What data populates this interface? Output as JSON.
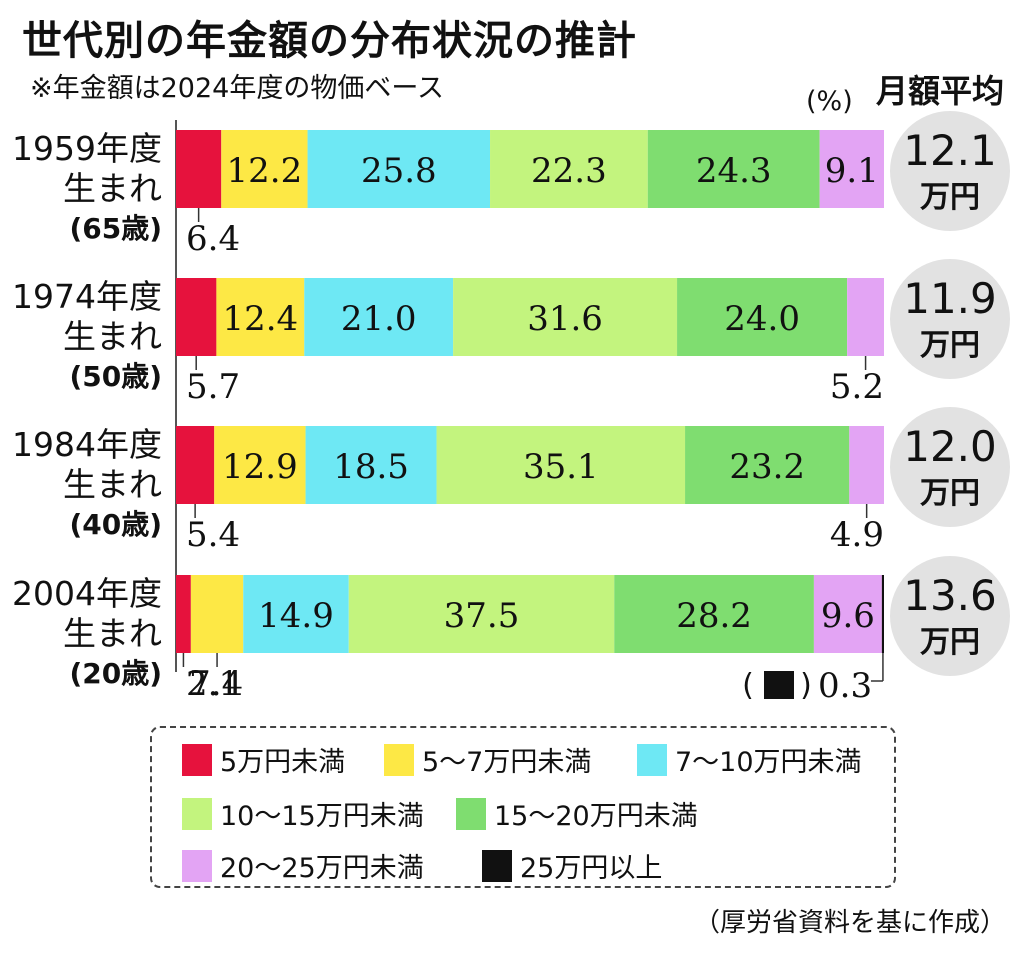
{
  "title": "世代別の年金額の分布状況の推計",
  "subtitle": "※年金額は2024年度の物価ベース",
  "avg_header": "月額平均",
  "unit_label": "(%)",
  "source": "（厚労省資料を基に作成）",
  "small_segment_note": {
    "open": "(",
    "close": ")",
    "swatch_color": "#111111"
  },
  "chart_data": {
    "type": "bar",
    "orientation": "horizontal",
    "stacked": true,
    "percent": true,
    "categories": [
      {
        "year": "1959年度",
        "born": "生まれ",
        "age": "(65歳)",
        "average_value": "12.1",
        "average_unit": "万円"
      },
      {
        "year": "1974年度",
        "born": "生まれ",
        "age": "(50歳)",
        "average_value": "11.9",
        "average_unit": "万円"
      },
      {
        "year": "1984年度",
        "born": "生まれ",
        "age": "(40歳)",
        "average_value": "12.0",
        "average_unit": "万円"
      },
      {
        "year": "2004年度",
        "born": "生まれ",
        "age": "(20歳)",
        "average_value": "13.6",
        "average_unit": "万円"
      }
    ],
    "series": [
      {
        "name": "5万円未満",
        "color": "#e6123d",
        "values": [
          6.4,
          5.7,
          5.4,
          2.1
        ],
        "labels": [
          "6.4",
          "5.7",
          "5.4",
          "2.1"
        ]
      },
      {
        "name": "5〜7万円未満",
        "color": "#fde845",
        "values": [
          12.2,
          12.4,
          12.9,
          7.4
        ],
        "labels": [
          "12.2",
          "12.4",
          "12.9",
          "7.4"
        ]
      },
      {
        "name": "7〜10万円未満",
        "color": "#6ee8f4",
        "values": [
          25.8,
          21.0,
          18.5,
          14.9
        ],
        "labels": [
          "25.8",
          "21.0",
          "18.5",
          "14.9"
        ]
      },
      {
        "name": "10〜15万円未満",
        "color": "#c3f47e",
        "values": [
          22.3,
          31.6,
          35.1,
          37.5
        ],
        "labels": [
          "22.3",
          "31.6",
          "35.1",
          "37.5"
        ]
      },
      {
        "name": "15〜20万円未満",
        "color": "#7fdd70",
        "values": [
          24.3,
          24.0,
          23.2,
          28.2
        ],
        "labels": [
          "24.3",
          "24.0",
          "23.2",
          "28.2"
        ]
      },
      {
        "name": "20〜25万円未満",
        "color": "#e3a4f4",
        "values": [
          9.1,
          5.2,
          4.9,
          9.6
        ],
        "labels": [
          "9.1",
          "5.2",
          "4.9",
          "9.6"
        ]
      },
      {
        "name": "25万円以上",
        "color": "#111111",
        "values": [
          0,
          0,
          0,
          0.3
        ],
        "labels": [
          "",
          "",
          "",
          "0.3"
        ]
      }
    ]
  }
}
